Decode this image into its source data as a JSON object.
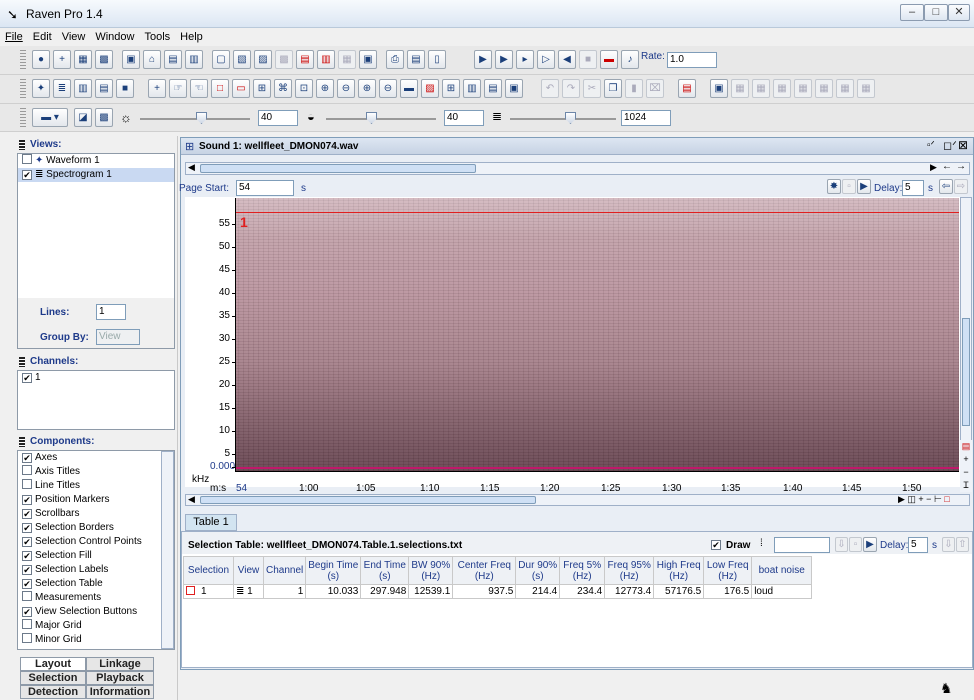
{
  "app": {
    "title": "Raven Pro 1.4"
  },
  "menu": [
    "File",
    "Edit",
    "View",
    "Window",
    "Tools",
    "Help"
  ],
  "toolbar": {
    "rate_label": "Rate:",
    "rate_value": "1.0"
  },
  "view_controls": {
    "slider1_value": "40",
    "slider2_value": "40",
    "slider3_value": "1024"
  },
  "views": {
    "header": "Views:",
    "items": [
      "Waveform 1",
      "Spectrogram 1"
    ],
    "lines_label": "Lines:",
    "lines_value": "1",
    "groupby_label": "Group By:",
    "groupby_value": "View"
  },
  "channels": {
    "header": "Channels:",
    "items": [
      "1"
    ]
  },
  "components": {
    "header": "Components:",
    "items": [
      {
        "label": "Axes",
        "checked": true
      },
      {
        "label": "Axis Titles",
        "checked": false
      },
      {
        "label": "Line Titles",
        "checked": false
      },
      {
        "label": "Position Markers",
        "checked": true
      },
      {
        "label": "Scrollbars",
        "checked": true
      },
      {
        "label": "Selection Borders",
        "checked": true
      },
      {
        "label": "Selection Control Points",
        "checked": true
      },
      {
        "label": "Selection Fill",
        "checked": true
      },
      {
        "label": "Selection Labels",
        "checked": true
      },
      {
        "label": "Selection Table",
        "checked": true
      },
      {
        "label": "Measurements",
        "checked": false
      },
      {
        "label": "View Selection Buttons",
        "checked": true
      },
      {
        "label": "Major Grid",
        "checked": false
      },
      {
        "label": "Minor Grid",
        "checked": false
      }
    ]
  },
  "bottom_tabs": {
    "layout": "Layout",
    "linkage": "Linkage",
    "selection": "Selection",
    "playback": "Playback",
    "detection": "Detection",
    "information": "Information"
  },
  "sound": {
    "title": "Sound 1: wellfleet_DMON074.wav",
    "page_start_label": "Page Start:",
    "page_start_value": "54",
    "page_start_unit": "s",
    "delay_label": "Delay:",
    "delay_value": "5",
    "delay_unit": "s"
  },
  "spectrogram": {
    "selection_label": "1",
    "y_unit": "kHz",
    "x_unit": "m:s",
    "y_ticks": [
      "55",
      "50",
      "45",
      "40",
      "35",
      "30",
      "25",
      "20",
      "15",
      "10",
      "5",
      "0.000"
    ],
    "x_ticks": [
      "54",
      "1:00",
      "1:05",
      "1:10",
      "1:15",
      "1:20",
      "1:25",
      "1:30",
      "1:35",
      "1:40",
      "1:45",
      "1:50"
    ]
  },
  "table": {
    "tab_label": "Table 1",
    "title": "Selection Table: wellfleet_DMON074.Table.1.selections.txt",
    "draw_label": "Draw",
    "delay_label": "Delay:",
    "delay_value": "5",
    "delay_unit": "s",
    "columns": [
      "Selection",
      "View",
      "Channel",
      "Begin Time\n(s)",
      "End Time\n(s)",
      "BW 90%\n(Hz)",
      "Center Freq\n(Hz)",
      "Dur 90%\n(s)",
      "Freq 5%\n(Hz)",
      "Freq 95%\n(Hz)",
      "High Freq\n(Hz)",
      "Low Freq\n(Hz)",
      "boat noise"
    ],
    "rows": [
      [
        "1",
        "1",
        "1",
        "10.033",
        "297.948",
        "12539.1",
        "937.5",
        "214.4",
        "234.4",
        "12773.4",
        "57176.5",
        "176.5",
        "loud"
      ]
    ]
  },
  "colors": {
    "accent": "#1e3a8a",
    "selection_border": "#e02020",
    "spectrogram": "#b08a94"
  }
}
